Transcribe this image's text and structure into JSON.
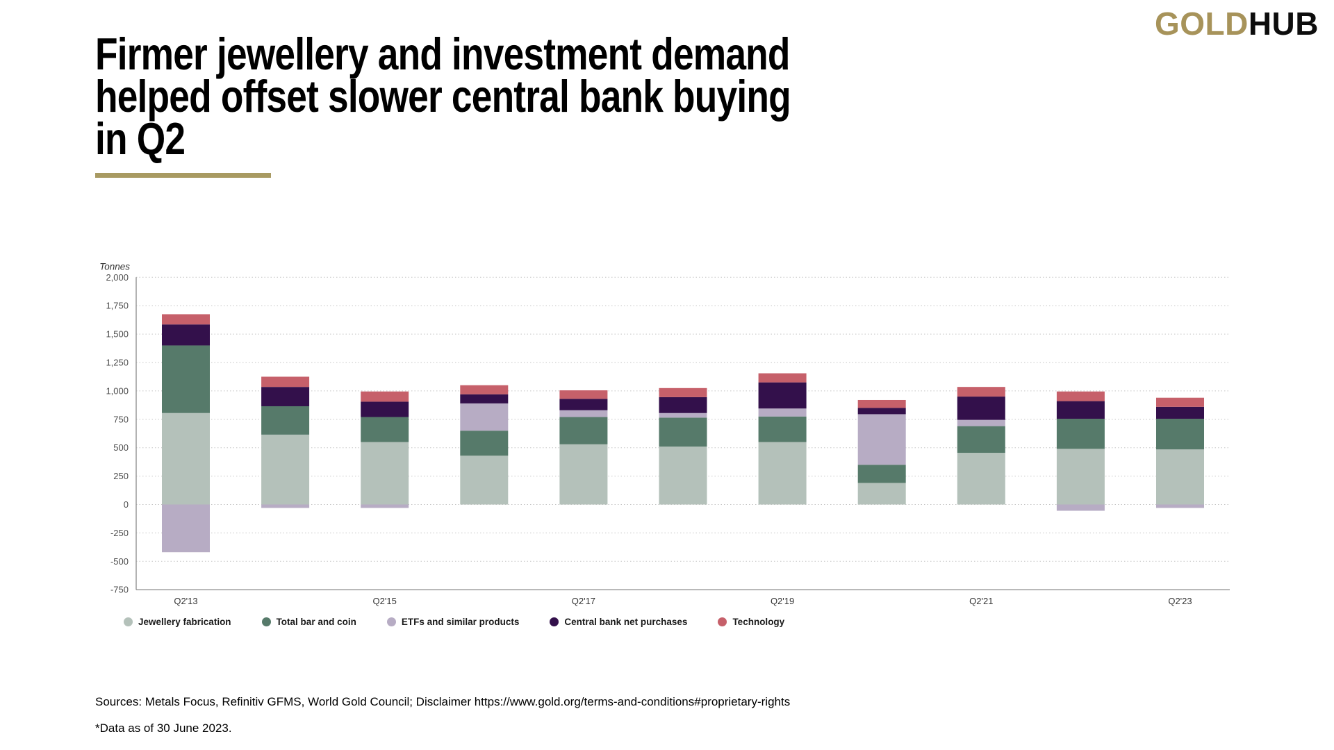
{
  "header": {
    "title_lines": [
      "Firmer jewellery and investment demand",
      "helped offset slower central bank buying",
      "in Q2"
    ],
    "logo_part1": "GOLD",
    "logo_part2": "HUB"
  },
  "colors": {
    "brand_gold": "#A7935A",
    "title_rule_gold": "#A89A62",
    "gridline": "#C4C4C4",
    "axis_line": "#9A9A9A"
  },
  "chart_data": {
    "type": "bar",
    "stacked": true,
    "unit_label": "Tonnes",
    "categories": [
      "Q2'13",
      "Q2'14",
      "Q2'15",
      "Q2'16",
      "Q2'17",
      "Q2'18",
      "Q2'19",
      "Q2'20",
      "Q2'21",
      "Q2'22",
      "Q2'23"
    ],
    "xtick_shown_every": 2,
    "series": [
      {
        "name": "Jewellery fabrication",
        "color": "#B4C1BA",
        "values": [
          805,
          615,
          550,
          430,
          530,
          510,
          550,
          190,
          455,
          490,
          485
        ]
      },
      {
        "name": "Total bar and coin",
        "color": "#567A6A",
        "values": [
          595,
          250,
          220,
          220,
          240,
          255,
          225,
          160,
          235,
          265,
          270
        ]
      },
      {
        "name": "ETFs and similar products",
        "color": "#B7ACC4",
        "values": [
          -420,
          -30,
          -30,
          240,
          60,
          40,
          70,
          445,
          55,
          -55,
          -30
        ]
      },
      {
        "name": "Central bank net purchases",
        "color": "#33104B",
        "values": [
          185,
          170,
          135,
          80,
          100,
          140,
          230,
          55,
          205,
          155,
          105
        ]
      },
      {
        "name": "Technology",
        "color": "#C6606A",
        "values": [
          90,
          90,
          90,
          80,
          75,
          80,
          80,
          70,
          85,
          85,
          80
        ]
      }
    ],
    "ylim": [
      -750,
      2000
    ],
    "ytick_step": 250,
    "grid": "dotted-horizontal",
    "legend_position": "bottom"
  },
  "footer": {
    "sources": "Sources: Metals Focus, Refinitiv GFMS, World Gold Council; Disclaimer https://www.gold.org/terms-and-conditions#proprietary-rights",
    "note": "*Data as of 30 June 2023."
  }
}
